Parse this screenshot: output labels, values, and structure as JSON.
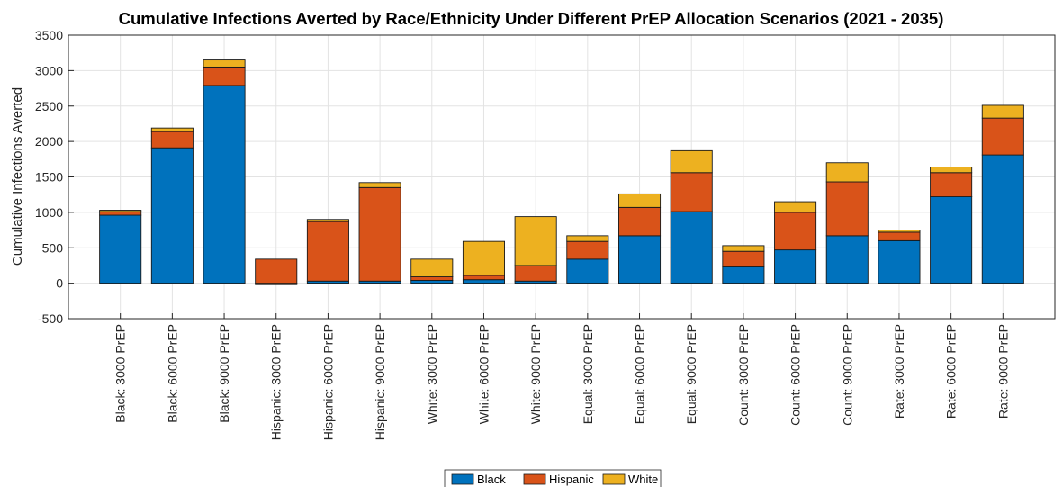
{
  "chart_data": {
    "type": "bar",
    "stacked": true,
    "title": "Cumulative Infections Averted by Race/Ethnicity Under Different PrEP Allocation Scenarios (2021 - 2035)",
    "ylabel": "Cumulative Infections Averted",
    "xlabel": "",
    "ylim": [
      -500,
      3500
    ],
    "yticks": [
      -500,
      0,
      500,
      1000,
      1500,
      2000,
      2500,
      3000,
      3500
    ],
    "grid": true,
    "legend_position": "bottom",
    "categories": [
      "Black: 3000 PrEP",
      "Black: 6000 PrEP",
      "Black: 9000 PrEP",
      "Hispanic: 3000 PrEP",
      "Hispanic: 6000 PrEP",
      "Hispanic: 9000 PrEP",
      "White: 3000 PrEP",
      "White: 6000 PrEP",
      "White: 9000 PrEP",
      "Equal: 3000 PrEP",
      "Equal: 6000 PrEP",
      "Equal: 9000 PrEP",
      "Count: 3000 PrEP",
      "Count: 6000 PrEP",
      "Count: 9000 PrEP",
      "Rate: 3000 PrEP",
      "Rate: 6000 PrEP",
      "Rate: 9000 PrEP"
    ],
    "series": [
      {
        "name": "Black",
        "color": "#0072BD",
        "values": [
          960,
          1910,
          2790,
          -20,
          30,
          30,
          40,
          50,
          30,
          340,
          670,
          1010,
          230,
          470,
          670,
          600,
          1220,
          1810
        ]
      },
      {
        "name": "Hispanic",
        "color": "#D95319",
        "values": [
          50,
          230,
          260,
          340,
          840,
          1320,
          50,
          60,
          220,
          250,
          400,
          550,
          220,
          530,
          760,
          120,
          340,
          520
        ]
      },
      {
        "name": "White",
        "color": "#EDB120",
        "values": [
          20,
          50,
          100,
          0,
          30,
          70,
          250,
          480,
          690,
          80,
          190,
          310,
          80,
          150,
          270,
          30,
          80,
          180
        ]
      }
    ]
  }
}
